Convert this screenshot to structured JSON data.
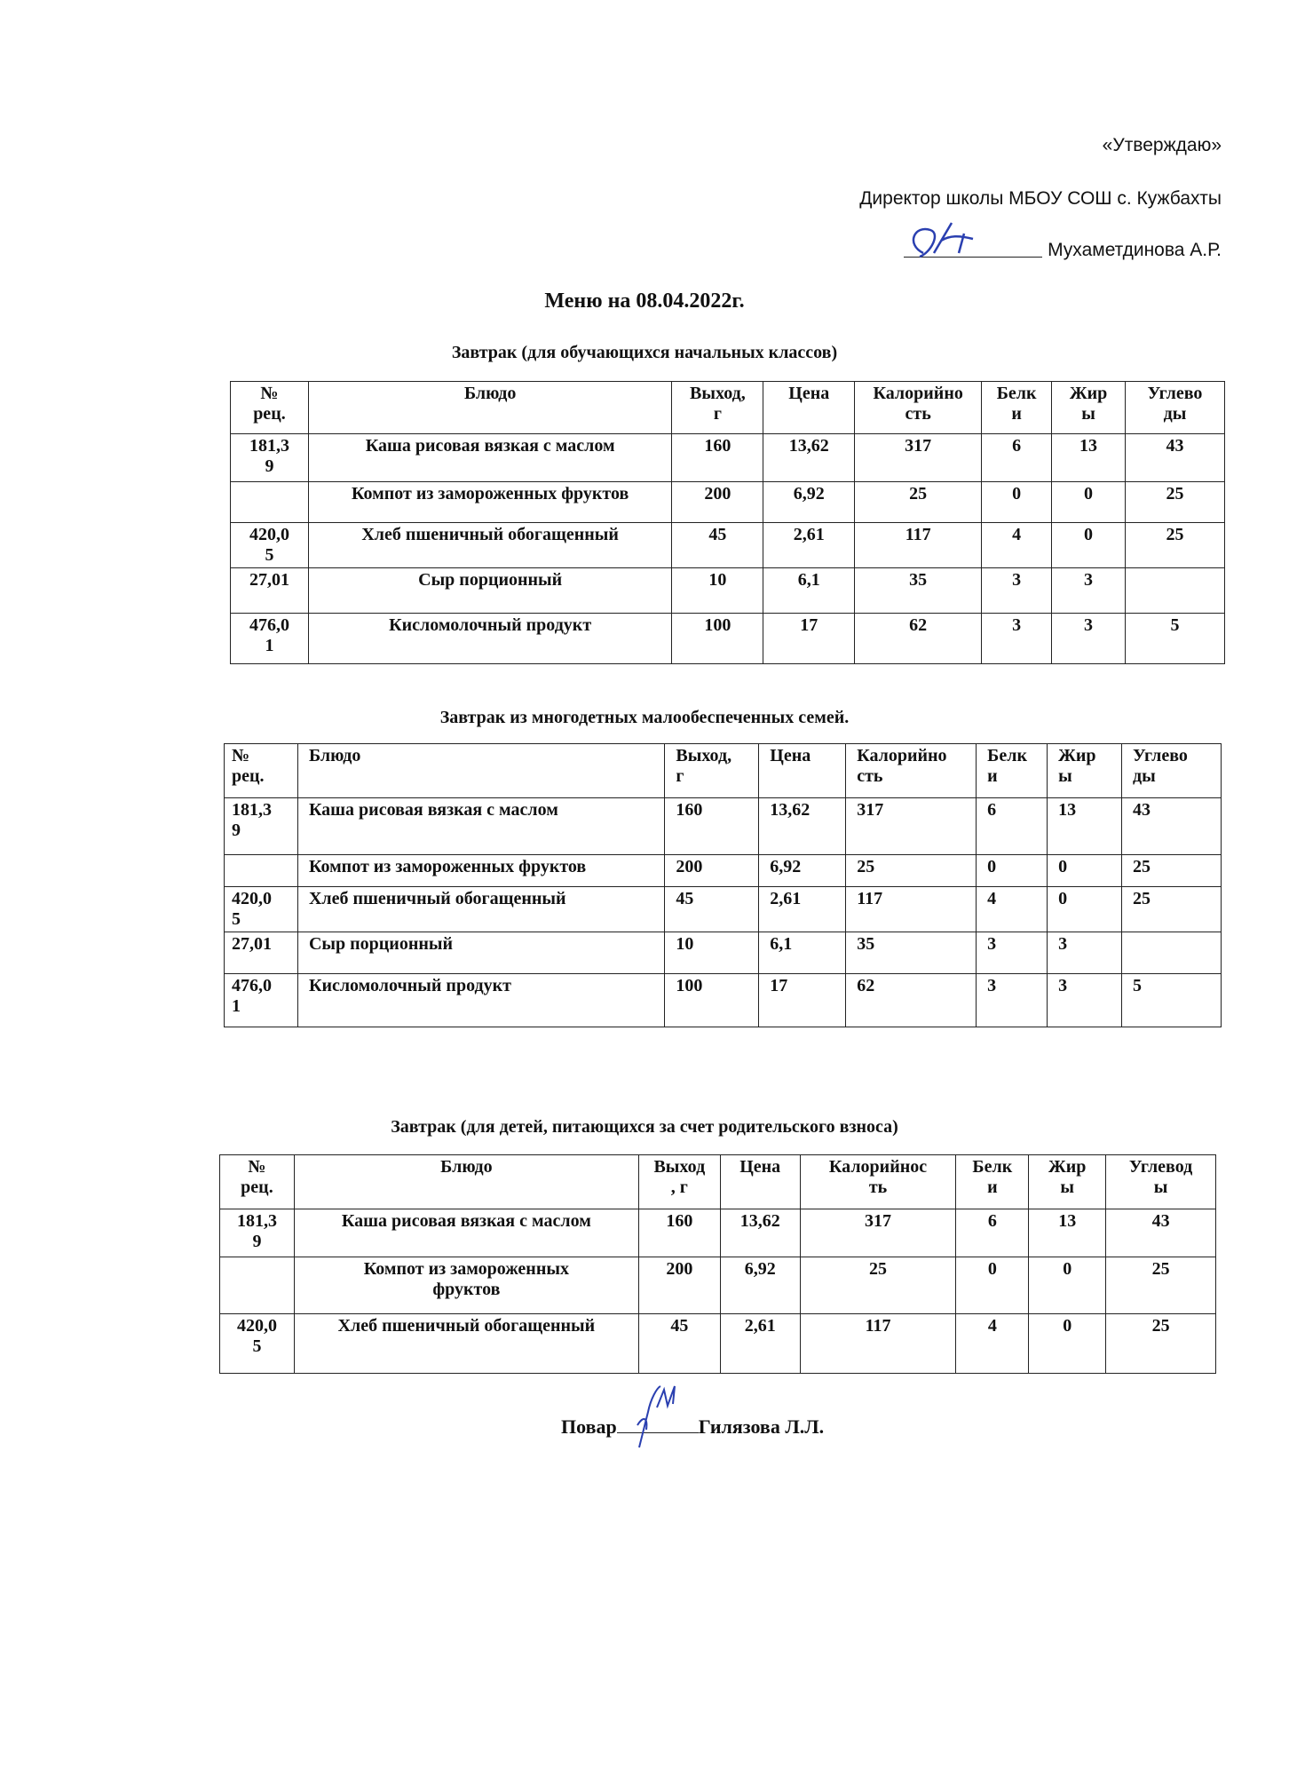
{
  "header": {
    "approve": "«Утверждаю»",
    "director": "Директор школы МБОУ СОШ с. Кужбахты",
    "director_name": "Мухаметдинова А.Р."
  },
  "title": "Меню на 08.04.2022г.",
  "columns": [
    "№ рец.",
    "Блюдо",
    "Выход, г",
    "Цена",
    "Калорийность",
    "Белки",
    "Жиры",
    "Углеводы"
  ],
  "sections": [
    {
      "subtitle": "Завтрак (для обучающихся  начальных классов)",
      "headers": [
        "№\nрец.",
        "Блюдо",
        "Выход,\nг",
        "Цена",
        "Калорийно\nсть",
        "Белк\nи",
        "Жир\nы",
        "Углево\nды"
      ],
      "rows": [
        [
          "181,3\n9",
          "Каша рисовая вязкая с маслом",
          "160",
          "13,62",
          "317",
          "6",
          "13",
          "43"
        ],
        [
          "",
          "Компот из замороженных фруктов",
          "200",
          "6,92",
          "25",
          "0",
          "0",
          "25"
        ],
        [
          "420,0\n5",
          "Хлеб пшеничный обогащенный",
          "45",
          "2,61",
          "117",
          "4",
          "0",
          "25"
        ],
        [
          "27,01",
          "Сыр порционный",
          "10",
          "6,1",
          "35",
          "3",
          "3",
          ""
        ],
        [
          "476,0\n1",
          "Кисломолочный продукт",
          "100",
          "17",
          "62",
          "3",
          "3",
          "5"
        ]
      ]
    },
    {
      "subtitle": "Завтрак из многодетных малообеспеченных семей.",
      "headers": [
        "№\nрец.",
        "Блюдо",
        "Выход,\nг",
        "Цена",
        "Калорийно\nсть",
        "Белк\nи",
        "Жир\nы",
        "Углево\nды"
      ],
      "rows": [
        [
          "181,3\n9",
          "Каша рисовая вязкая с маслом",
          "160",
          "13,62",
          "317",
          "6",
          "13",
          "43"
        ],
        [
          "",
          "Компот из замороженных фруктов",
          "200",
          "6,92",
          "25",
          "0",
          "0",
          "25"
        ],
        [
          "420,0\n5",
          "Хлеб пшеничный обогащенный",
          "45",
          "2,61",
          "117",
          "4",
          "0",
          "25"
        ],
        [
          "27,01",
          "Сыр порционный",
          "10",
          "6,1",
          "35",
          "3",
          "3",
          ""
        ],
        [
          "476,0\n1",
          "Кисломолочный продукт",
          "100",
          "17",
          "62",
          "3",
          "3",
          "5"
        ]
      ]
    },
    {
      "subtitle": "Завтрак (для детей, питающихся за счет родительского взноса)",
      "headers": [
        "№\nрец.",
        "Блюдо",
        "Выход\n, г",
        "Цена",
        "Калорийнос\nть",
        "Белк\nи",
        "Жир\nы",
        "Углевод\nы"
      ],
      "rows": [
        [
          "181,3\n9",
          "Каша рисовая вязкая с маслом",
          "160",
          "13,62",
          "317",
          "6",
          "13",
          "43"
        ],
        [
          "",
          "Компот из замороженных\nфруктов",
          "200",
          "6,92",
          "25",
          "0",
          "0",
          "25"
        ],
        [
          "420,0\n5",
          "Хлеб пшеничный обогащенный",
          "45",
          "2,61",
          "117",
          "4",
          "0",
          "25"
        ]
      ]
    }
  ],
  "footer": {
    "cook_label": "Повар",
    "cook_name": "Гилязова Л.Л."
  },
  "colors": {
    "signature_ink": "#2a3fb0",
    "text": "#111111"
  }
}
